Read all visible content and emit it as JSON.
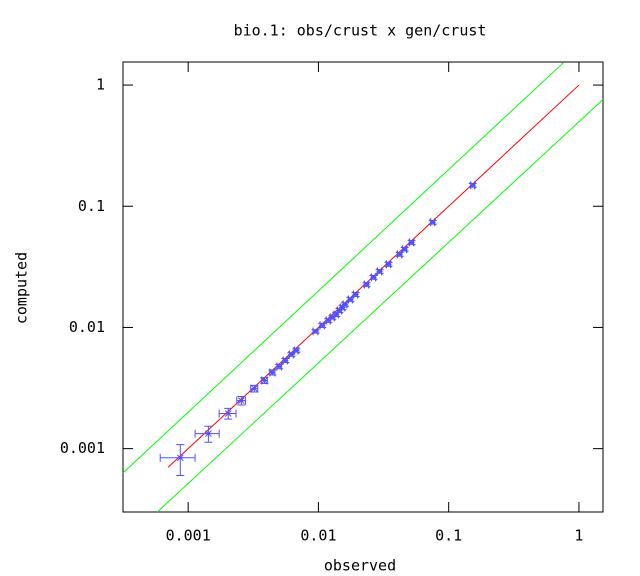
{
  "chart_data": {
    "type": "scatter",
    "title": "bio.1: obs/crust x gen/crust",
    "x_label": "observed",
    "y_label": "computed",
    "xscale": "log",
    "yscale": "log",
    "xlim": [
      0.000316,
      1.53
    ],
    "ylim": [
      0.0003,
      1.55
    ],
    "xticks": [
      0.001,
      0.01,
      0.1,
      1
    ],
    "yticks": [
      0.001,
      0.01,
      0.1,
      1
    ],
    "color": "#5050ff",
    "x": [
      0.00087,
      0.00143,
      0.00203,
      0.00256,
      0.00322,
      0.00385,
      0.00443,
      0.005,
      0.00557,
      0.0062,
      0.00677,
      0.0095,
      0.0107,
      0.0119,
      0.0128,
      0.0137,
      0.0145,
      0.0153,
      0.016,
      0.0176,
      0.0193,
      0.0234,
      0.0265,
      0.0295,
      0.0345,
      0.042,
      0.0459,
      0.0519,
      0.0754,
      0.153
    ],
    "values": [
      0.00084,
      0.00133,
      0.00195,
      0.00249,
      0.00313,
      0.00365,
      0.00425,
      0.00476,
      0.00534,
      0.00598,
      0.00645,
      0.00927,
      0.0104,
      0.0114,
      0.0121,
      0.0128,
      0.0138,
      0.0146,
      0.0155,
      0.017,
      0.0187,
      0.0226,
      0.0259,
      0.029,
      0.0332,
      0.0401,
      0.0442,
      0.0503,
      0.0738,
      0.149
    ],
    "xerr": [
      0.00026,
      0.0003,
      0.0003,
      0.0002,
      0.0002,
      0.0002,
      0.0002,
      0.0002,
      0.0002,
      0.0002,
      0.0002,
      0.0004,
      0.0004,
      0.0004,
      0.0004,
      0.0005,
      0.0005,
      0.0005,
      0.0005,
      0.0006,
      0.0007,
      0.0008,
      0.0009,
      0.001,
      0.0012,
      0.0015,
      0.0016,
      0.0018,
      0.0026,
      0.005
    ],
    "yerr": [
      0.00024,
      0.0002,
      0.0002,
      0.0002,
      0.0002,
      0.0002,
      0.0002,
      0.0002,
      0.0002,
      0.0002,
      0.0002,
      0.0003,
      0.0004,
      0.0004,
      0.0004,
      0.0005,
      0.0005,
      0.0005,
      0.0005,
      0.0006,
      0.0007,
      0.0008,
      0.0009,
      0.001,
      0.0012,
      0.0014,
      0.0015,
      0.0018,
      0.0026,
      0.005
    ],
    "lines": [
      {
        "color": "#ff0000",
        "x": [
          0.0007,
          1
        ],
        "values": [
          0.0007,
          1
        ]
      },
      {
        "color": "#00ff00",
        "x": [
          0.000316,
          0.76
        ],
        "values": [
          0.00063,
          1.53
        ]
      },
      {
        "color": "#00ff00",
        "x": [
          0.00058,
          1.53
        ],
        "values": [
          0.0003,
          0.76
        ]
      }
    ]
  }
}
